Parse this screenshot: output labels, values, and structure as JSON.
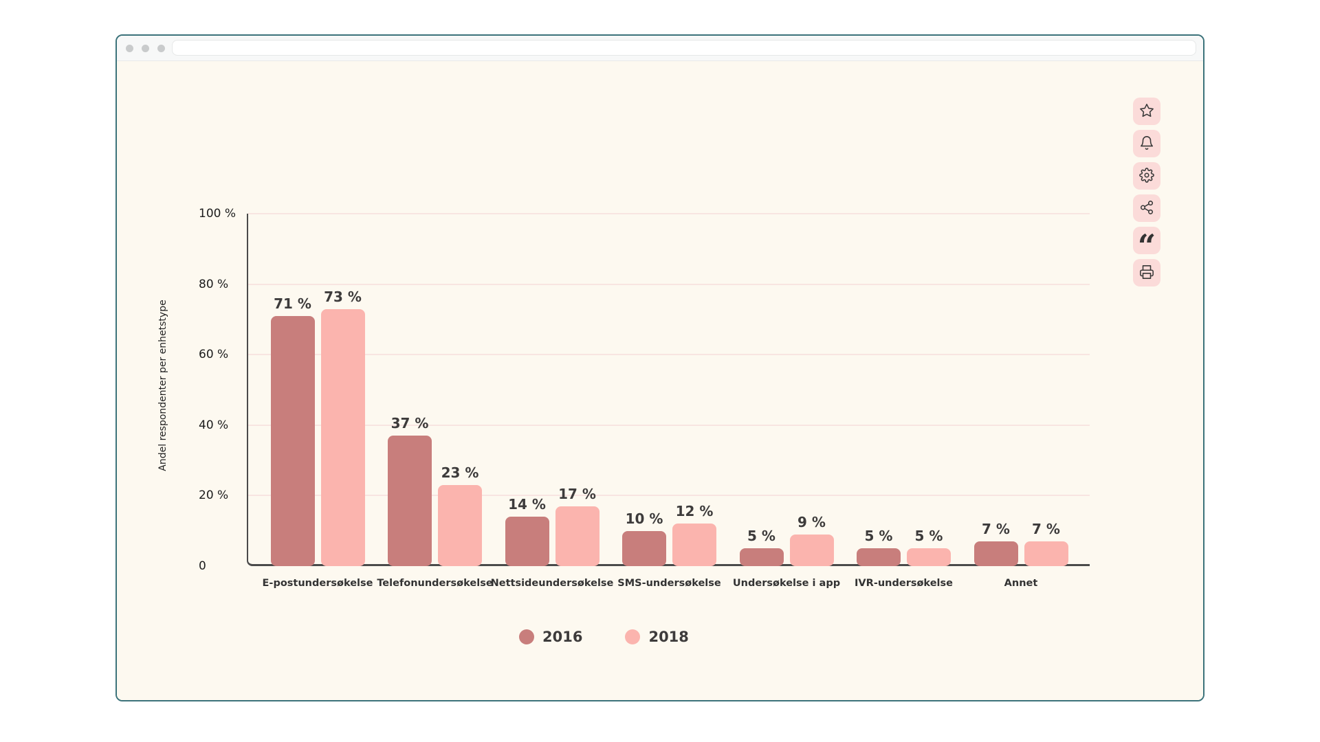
{
  "window": {
    "address_bar": {
      "value": ""
    }
  },
  "colors": {
    "window_border": "#3B727A",
    "content_background": "#FDF9F0",
    "grid_line": "#F8E5E1",
    "axis_line": "#4A4A4A",
    "toolbar_button_background": "#FBDBD9",
    "series_2016": "#C87E7C",
    "series_2018": "#FBB4AE"
  },
  "toolbar": {
    "buttons": [
      {
        "icon": "star-icon"
      },
      {
        "icon": "bell-icon"
      },
      {
        "icon": "gear-icon"
      },
      {
        "icon": "share-icon"
      },
      {
        "icon": "quote-icon"
      },
      {
        "icon": "printer-icon"
      }
    ]
  },
  "chart_data": {
    "type": "bar",
    "title": "",
    "xlabel": "",
    "ylabel": "Andel respondenter per enhetstype",
    "ylim": [
      0,
      100
    ],
    "grid": true,
    "legend_position": "bottom",
    "value_label_suffix": " %",
    "categories": [
      "E-postundersøkelse",
      "Telefonundersøkelse",
      "Nettsideundersøkelse",
      "SMS-undersøkelse",
      "Undersøkelse i app",
      "IVR-undersøkelse",
      "Annet"
    ],
    "series": [
      {
        "name": "2016",
        "color": "#C87E7C",
        "values": [
          71,
          37,
          14,
          10,
          5,
          5,
          7
        ]
      },
      {
        "name": "2018",
        "color": "#FBB4AE",
        "values": [
          73,
          23,
          17,
          12,
          9,
          5,
          7
        ]
      }
    ],
    "y_ticks": [
      {
        "value": 100,
        "label": "100 %"
      },
      {
        "value": 80,
        "label": "80 %"
      },
      {
        "value": 60,
        "label": "60 %"
      },
      {
        "value": 40,
        "label": "40 %"
      },
      {
        "value": 20,
        "label": "20 %"
      },
      {
        "value": 0,
        "label": "0"
      }
    ]
  }
}
